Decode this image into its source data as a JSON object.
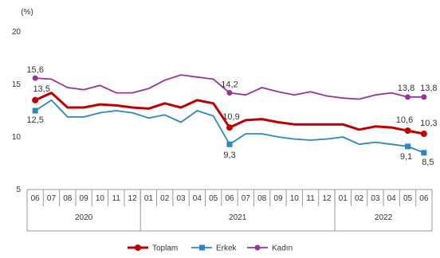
{
  "chart_data": {
    "type": "line",
    "unit_label": "(%)",
    "categories": [
      "06",
      "07",
      "08",
      "09",
      "10",
      "11",
      "12",
      "01",
      "02",
      "03",
      "04",
      "05",
      "06",
      "07",
      "08",
      "09",
      "10",
      "11",
      "12",
      "01",
      "02",
      "03",
      "04",
      "05",
      "06"
    ],
    "years": [
      {
        "label": "2020",
        "from": 0,
        "to": 6
      },
      {
        "label": "2021",
        "from": 7,
        "to": 18
      },
      {
        "label": "2022",
        "from": 19,
        "to": 24
      }
    ],
    "y_ticks": [
      5,
      10,
      15,
      20
    ],
    "ylim": [
      5,
      20
    ],
    "grid": false,
    "legend_position": "bottom",
    "series": [
      {
        "name": "Toplam",
        "color": "#c00000",
        "values": [
          13.5,
          14.2,
          12.8,
          12.8,
          13.1,
          13.0,
          12.8,
          12.7,
          13.2,
          12.8,
          13.5,
          13.2,
          10.9,
          11.6,
          11.7,
          11.4,
          11.2,
          11.2,
          11.2,
          11.2,
          10.7,
          11.0,
          10.9,
          10.6,
          10.3
        ],
        "labels": [
          {
            "index": 0,
            "text": "13,5"
          },
          {
            "index": 12,
            "text": "10,9"
          },
          {
            "index": 23,
            "text": "10,6"
          },
          {
            "index": 24,
            "text": "10,3"
          }
        ]
      },
      {
        "name": "Erkek",
        "color": "#2e86c1",
        "values": [
          12.5,
          13.5,
          11.9,
          11.9,
          12.3,
          12.5,
          12.3,
          11.8,
          12.1,
          11.4,
          12.5,
          12.0,
          9.3,
          10.3,
          10.3,
          10.0,
          9.8,
          9.7,
          9.8,
          10.0,
          9.3,
          9.5,
          9.3,
          9.1,
          8.5
        ],
        "labels": [
          {
            "index": 0,
            "text": "12,5"
          },
          {
            "index": 12,
            "text": "9,3"
          },
          {
            "index": 23,
            "text": "9,1"
          },
          {
            "index": 24,
            "text": "8,5"
          }
        ]
      },
      {
        "name": "Kadın",
        "color": "#993399",
        "values": [
          15.6,
          15.5,
          14.7,
          14.5,
          14.9,
          14.2,
          14.2,
          14.6,
          15.4,
          15.9,
          15.7,
          15.5,
          14.2,
          14.0,
          14.7,
          14.3,
          14.0,
          14.3,
          13.9,
          13.7,
          13.6,
          14.0,
          14.2,
          13.8,
          13.8
        ],
        "labels": [
          {
            "index": 0,
            "text": "15,6"
          },
          {
            "index": 12,
            "text": "14,2"
          },
          {
            "index": 23,
            "text": "13,8"
          },
          {
            "index": 24,
            "text": "13,8"
          }
        ]
      }
    ]
  }
}
